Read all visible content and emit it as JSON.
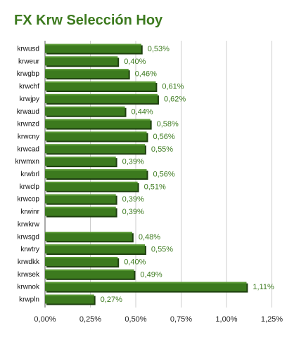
{
  "chart_data": {
    "type": "bar",
    "orientation": "horizontal",
    "title": "FX Krw Selección Hoy",
    "categories": [
      "krwusd",
      "krweur",
      "krwgbp",
      "krwchf",
      "krwjpy",
      "krwaud",
      "krwnzd",
      "krwcny",
      "krwcad",
      "krwmxn",
      "krwbrl",
      "krwclp",
      "krwcop",
      "krwinr",
      "krwkrw",
      "krwsgd",
      "krwtry",
      "krwdkk",
      "krwsek",
      "krwnok",
      "krwpln"
    ],
    "values": [
      0.53,
      0.4,
      0.46,
      0.61,
      0.62,
      0.44,
      0.58,
      0.56,
      0.55,
      0.39,
      0.56,
      0.51,
      0.39,
      0.39,
      0,
      0.48,
      0.55,
      0.4,
      0.49,
      1.11,
      0.27
    ],
    "value_labels": [
      "0,53%",
      "0,40%",
      "0,46%",
      "0,61%",
      "0,62%",
      "0,44%",
      "0,58%",
      "0,56%",
      "0,55%",
      "0,39%",
      "0,56%",
      "0,51%",
      "0,39%",
      "0,39%",
      "",
      "0,48%",
      "0,55%",
      "0,40%",
      "0,49%",
      "1,11%",
      "0,27%"
    ],
    "xlim": [
      0,
      1.25
    ],
    "x_ticks": [
      0,
      0.25,
      0.5,
      0.75,
      1.0,
      1.25
    ],
    "x_tick_labels": [
      "0,00%",
      "0,25%",
      "0,50%",
      "0,75%",
      "1,00%",
      "1,25%"
    ],
    "grid": true,
    "colors": {
      "bar": "#3c7a1e",
      "bar_top": "#5a9a35",
      "bar_shadow": "#1e3f0f",
      "title": "#3c7a1e",
      "value_label": "#3c7a1e",
      "grid": "#cccccc"
    }
  }
}
